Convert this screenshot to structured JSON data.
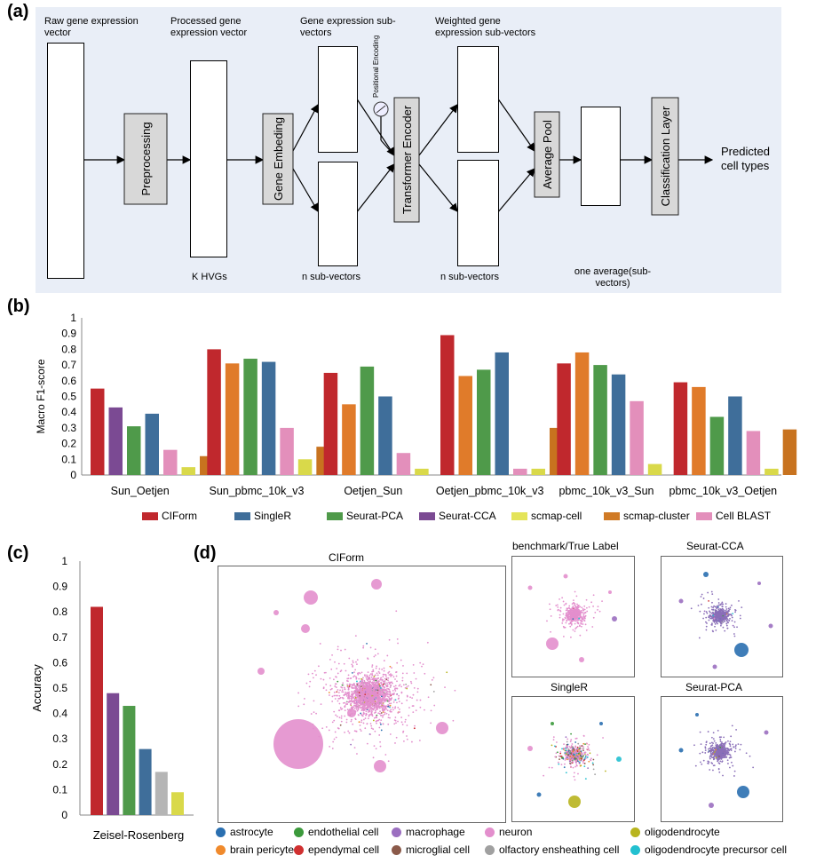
{
  "panels": {
    "a": "(a)",
    "b": "(b)",
    "c": "(c)",
    "d": "(d)"
  },
  "diagram": {
    "raw_vector": "Raw gene expression vector",
    "processed_vector": "Processed gene expression vector",
    "sub_vectors": "Gene expression sub-vectors",
    "weighted_sub_vectors": "Weighted gene expression sub-vectors",
    "preprocessing": "Preprocessing",
    "gene_embedding": "Gene Embeding",
    "positional_encoding": "Positional Encoding",
    "transformer_encoder": "Transformer Encoder",
    "average_pool": "Average Pool",
    "classification_layer": "Classification Layer",
    "predicted": "Predicted cell types",
    "k_hvgs": "K HVGs",
    "n_sub_vectors_1": "n  sub-vectors",
    "n_sub_vectors_2": "n  sub-vectors",
    "one_average": "one average(sub-vectors)"
  },
  "chart_b": {
    "type": "bar",
    "ylabel": "Macro F1-score",
    "ylim": [
      0,
      1
    ],
    "yticks": [
      "0",
      "0.1",
      "0.2",
      "0.3",
      "0.4",
      "0.5",
      "0.6",
      "0.7",
      "0.8",
      "0.9",
      "1"
    ],
    "categories": [
      "Sun_Oetjen",
      "Sun_pbmc_10k_v3",
      "Oetjen_Sun",
      "Oetjen_pbmc_10k_v3",
      "pbmc_10k_v3_Sun",
      "pbmc_10k_v3_Oetjen"
    ],
    "series": [
      {
        "name": "CIForm",
        "color": "#c0282d",
        "values": [
          0.55,
          0.8,
          0.65,
          0.89,
          0.71,
          0.59
        ]
      },
      {
        "name": "Seurat-CCA",
        "color": "#7b4a93",
        "values": [
          0.43,
          null,
          null,
          null,
          null,
          null
        ]
      },
      {
        "name": "scmap-cluster",
        "color": "#e07b2a",
        "values": [
          null,
          0.71,
          0.45,
          0.63,
          0.78,
          0.56
        ]
      },
      {
        "name": "Seurat-PCA",
        "color": "#4f9a4a",
        "values": [
          0.31,
          0.74,
          0.69,
          0.67,
          0.7,
          0.37
        ]
      },
      {
        "name": "SingleR",
        "color": "#3f6e9a",
        "values": [
          0.39,
          0.72,
          0.5,
          0.78,
          0.64,
          0.5
        ]
      },
      {
        "name": "Cell BLAST",
        "color": "#e38fbb",
        "values": [
          0.16,
          0.3,
          0.14,
          0.04,
          0.47,
          0.28
        ]
      },
      {
        "name": "scmap-cell",
        "color": "#d9d94a",
        "values": [
          0.05,
          0.1,
          0.04,
          0.04,
          0.07,
          0.04
        ]
      },
      {
        "name": "scmap-cluster",
        "color": "#c8731f",
        "values": [
          0.12,
          0.18,
          null,
          0.3,
          null,
          0.29
        ]
      }
    ],
    "legend": [
      {
        "name": "CIForm",
        "color": "#c0282d"
      },
      {
        "name": "SingleR",
        "color": "#3f6e9a"
      },
      {
        "name": "Seurat-PCA",
        "color": "#4f9a4a"
      },
      {
        "name": "Seurat-CCA",
        "color": "#7b4a93"
      },
      {
        "name": "scmap-cell",
        "color": "#e4e45a"
      },
      {
        "name": "scmap-cluster",
        "color": "#d07a25"
      },
      {
        "name": "Cell BLAST",
        "color": "#e38fbb"
      }
    ]
  },
  "chart_c": {
    "type": "bar",
    "ylabel": "Accuracy",
    "xlabel": "Zeisel-Rosenberg",
    "ylim": [
      0,
      1
    ],
    "yticks": [
      "0",
      "0.1",
      "0.2",
      "0.3",
      "0.4",
      "0.5",
      "0.6",
      "0.7",
      "0.8",
      "0.9",
      "1"
    ],
    "bars": [
      {
        "color": "#c0282d",
        "value": 0.82
      },
      {
        "color": "#7b4a93",
        "value": 0.48
      },
      {
        "color": "#4f9a4a",
        "value": 0.43
      },
      {
        "color": "#3f6e9a",
        "value": 0.26
      },
      {
        "color": "#b5b5b5",
        "value": 0.17
      },
      {
        "color": "#d9d94a",
        "value": 0.09
      }
    ]
  },
  "tsne": {
    "main_title": "CIForm",
    "benchmark_title": "benchmark/True  Label",
    "cca_title": "Seurat-CCA",
    "singler_title": "SingleR",
    "pca_title": "Seurat-PCA"
  },
  "cell_legend": [
    {
      "name": "astrocyte",
      "color": "#2a6fb0"
    },
    {
      "name": "endothelial cell",
      "color": "#3c9a3c"
    },
    {
      "name": "macrophage",
      "color": "#9b6fc0"
    },
    {
      "name": "neuron",
      "color": "#e38fcd"
    },
    {
      "name": "oligodendrocyte",
      "color": "#b8b41e"
    },
    {
      "name": "brain pericyte",
      "color": "#f08a2c"
    },
    {
      "name": "ependymal cell",
      "color": "#d03030"
    },
    {
      "name": "microglial cell",
      "color": "#8b5a4a"
    },
    {
      "name": "olfactory ensheathing cell",
      "color": "#a0a0a0"
    },
    {
      "name": "oligodendrocyte precursor cell",
      "color": "#22c0d0"
    }
  ]
}
